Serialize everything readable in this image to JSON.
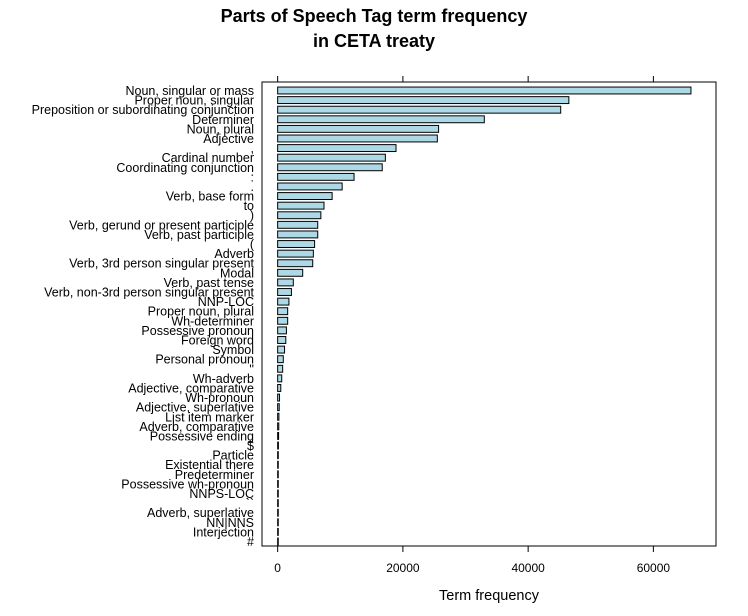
{
  "chart_data": {
    "type": "bar",
    "orientation": "horizontal",
    "title_line1": "Parts of Speech Tag term frequency",
    "title_line2": "in CETA treaty",
    "xlabel": "Term frequency",
    "ylabel": "",
    "xlim": [
      -2500,
      70000
    ],
    "xticks": [
      0,
      20000,
      40000,
      60000
    ],
    "xtick_labels": [
      "0",
      "20000",
      "40000",
      "60000"
    ],
    "bar_fill": "#add8e6",
    "bar_stroke": "#000000",
    "categories": [
      "Noun, singular or mass",
      "Proper noun, singular",
      "Preposition or subordinating conjunction",
      "Determiner",
      "Noun, plural",
      "Adjective",
      ",",
      "Cardinal number",
      "Coordinating conjunction",
      ":",
      ".",
      "Verb, base form",
      "to",
      ")",
      "Verb, gerund or present participle",
      "Verb, past participle",
      "(",
      "Adverb",
      "Verb, 3rd person singular present",
      "Modal",
      "Verb, past tense",
      "Verb, non-3rd person singular present",
      "NNP-LOC",
      "Proper noun, plural",
      "Wh-determiner",
      "Possessive pronoun",
      "Foreign word",
      "Symbol",
      "Personal pronoun",
      "''",
      "Wh-adverb",
      "Adjective, comparative",
      "Wh-pronoun",
      "Adjective, superlative",
      "List item marker",
      "Adverb, comparative",
      "Possessive ending",
      "$",
      "Particle",
      "Existential there",
      "Predeterminer",
      "Possessive wh-pronoun",
      "NNPS-LOC",
      "``",
      "Adverb, superlative",
      "NN|NNS",
      "Interjection",
      "#"
    ],
    "values": [
      66000,
      46500,
      45200,
      33000,
      25700,
      25500,
      18900,
      17200,
      16700,
      12200,
      10300,
      8700,
      7400,
      6900,
      6400,
      6400,
      5900,
      5700,
      5600,
      4000,
      2500,
      2200,
      1800,
      1600,
      1600,
      1400,
      1300,
      1100,
      900,
      800,
      650,
      500,
      300,
      250,
      200,
      180,
      150,
      120,
      100,
      80,
      60,
      50,
      40,
      30,
      25,
      20,
      10,
      5
    ]
  }
}
